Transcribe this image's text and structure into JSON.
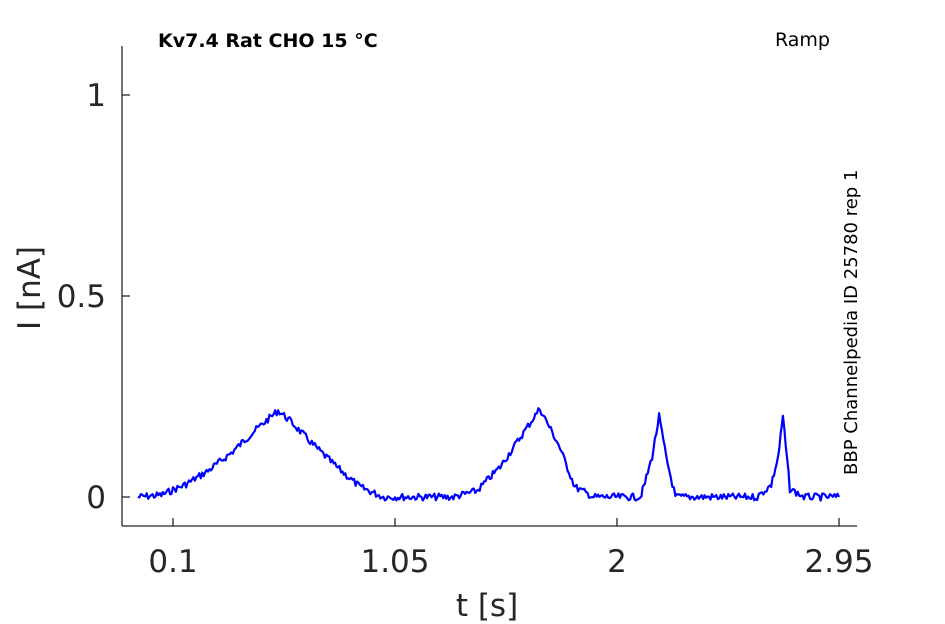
{
  "chart_data": {
    "type": "line",
    "title": "Kv7.4  Rat  CHO  15 °C",
    "protocol_label": "Ramp",
    "side_label": "BBP Channelpedia ID 25780 rep 1",
    "xlabel": "t [s]",
    "ylabel": "I [nA]",
    "xlim": [
      -0.15,
      3.05
    ],
    "ylim": [
      -0.07,
      1.12
    ],
    "xticks": [
      0.1,
      1.05,
      2,
      2.95
    ],
    "xtick_labels": [
      "0.1",
      "1.05",
      "2",
      "2.95"
    ],
    "yticks": [
      0,
      0.5,
      1
    ],
    "ytick_labels": [
      "0",
      "0.5",
      "1"
    ],
    "grid": false,
    "color": "#0000ff",
    "series": [
      {
        "x": [
          -0.05,
          0.05,
          0.15,
          0.25,
          0.35,
          0.45,
          0.55,
          0.6,
          0.7,
          0.8,
          0.9,
          1.0,
          1.1,
          1.2,
          1.3,
          1.4,
          1.5,
          1.6,
          1.67,
          1.75,
          1.82,
          1.9,
          2.0,
          2.1,
          2.12,
          2.15,
          2.18,
          2.21,
          2.25,
          2.35,
          2.45,
          2.6,
          2.66,
          2.69,
          2.71,
          2.74,
          2.8,
          2.95
        ],
        "y": [
          0.0,
          0.005,
          0.03,
          0.065,
          0.11,
          0.165,
          0.215,
          0.19,
          0.13,
          0.075,
          0.025,
          0.0,
          0.0,
          0.0,
          0.0,
          0.015,
          0.075,
          0.16,
          0.22,
          0.13,
          0.025,
          0.0,
          0.0,
          0.0,
          0.035,
          0.1,
          0.2,
          0.1,
          0.0,
          0.0,
          0.0,
          0.0,
          0.03,
          0.1,
          0.2,
          0.02,
          0.0,
          0.0
        ]
      }
    ]
  }
}
